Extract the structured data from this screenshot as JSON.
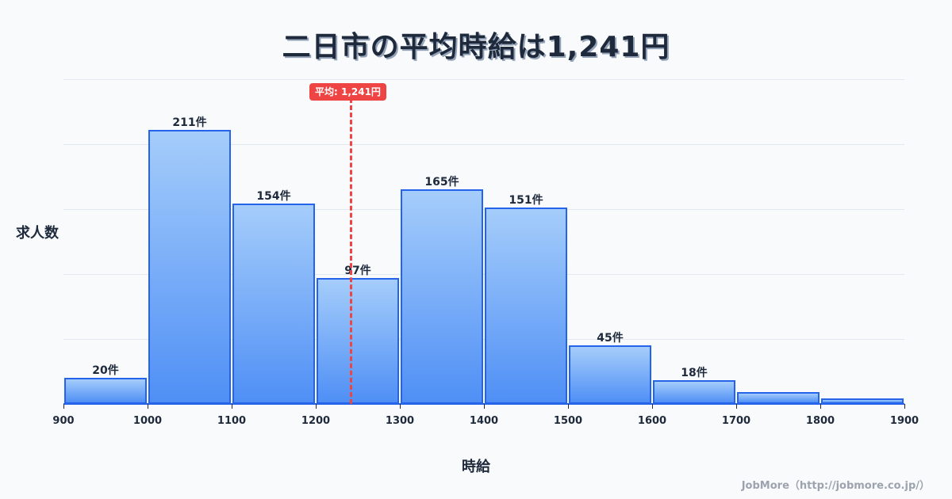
{
  "title": "二日市の平均時給は1,241円",
  "y_axis_label": "求人数",
  "x_axis_label": "時給",
  "credit": "JobMore（http://jobmore.co.jp/）",
  "mean_badge": "平均: 1,241円",
  "colors": {
    "bar_top": "#a5cdfb",
    "bar_bottom": "#4f8ff5",
    "bar_border": "#2563eb",
    "mean_line": "#ef4444",
    "text": "#1e293b",
    "background": "#f8fafc",
    "grid": "#e2e8f0"
  },
  "bars": [
    {
      "range": "900-1000",
      "label": "20件"
    },
    {
      "range": "1000-1100",
      "label": "211件"
    },
    {
      "range": "1100-1200",
      "label": "154件"
    },
    {
      "range": "1200-1300",
      "label": "97件"
    },
    {
      "range": "1300-1400",
      "label": "165件"
    },
    {
      "range": "1400-1500",
      "label": "151件"
    },
    {
      "range": "1500-1600",
      "label": "45件"
    },
    {
      "range": "1600-1700",
      "label": "18件"
    },
    {
      "range": "1700-1800",
      "label": ""
    },
    {
      "range": "1800-1900",
      "label": ""
    }
  ],
  "x_ticks": [
    "900",
    "1000",
    "1100",
    "1200",
    "1300",
    "1400",
    "1500",
    "1600",
    "1700",
    "1800",
    "1900"
  ],
  "chart_data": {
    "type": "bar",
    "title": "二日市の平均時給は1,241円",
    "xlabel": "時給",
    "ylabel": "求人数",
    "categories": [
      "900-1000",
      "1000-1100",
      "1100-1200",
      "1200-1300",
      "1300-1400",
      "1400-1500",
      "1500-1600",
      "1600-1700",
      "1700-1800",
      "1800-1900"
    ],
    "bin_edges": [
      900,
      1000,
      1100,
      1200,
      1300,
      1400,
      1500,
      1600,
      1700,
      1800,
      1900
    ],
    "values": [
      20,
      211,
      154,
      97,
      165,
      151,
      45,
      18,
      9,
      4
    ],
    "data_labels": [
      "20件",
      "211件",
      "154件",
      "97件",
      "165件",
      "151件",
      "45件",
      "18件",
      "",
      ""
    ],
    "annotations": [
      {
        "type": "vline",
        "x": 1241,
        "label": "平均: 1,241円",
        "style": "dashed",
        "color": "#ef4444"
      }
    ],
    "xlim": [
      900,
      1900
    ],
    "ylim": [
      0,
      250
    ],
    "grid": true,
    "legend": "none"
  }
}
